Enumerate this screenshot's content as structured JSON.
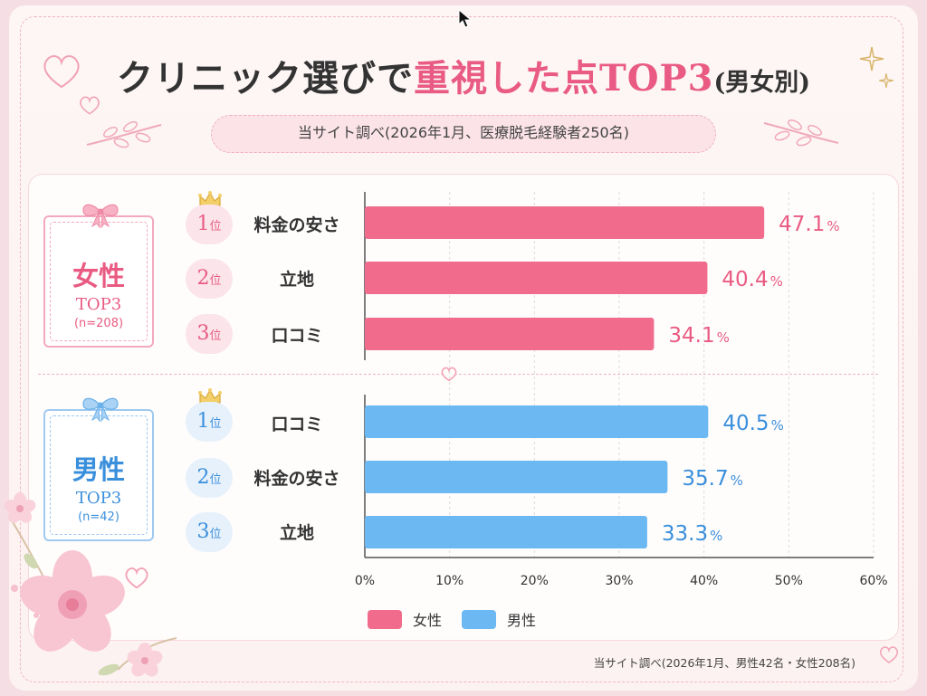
{
  "header": {
    "title_main": "クリニック選びで",
    "title_accent": "重視した点TOP3",
    "title_sub": "(男女別)",
    "subtitle": "当サイト調べ(2026年1月、医療脱毛経験者250名)"
  },
  "female_badge": {
    "name": "女性",
    "top": "TOP3",
    "n": "(n=208)"
  },
  "male_badge": {
    "name": "男性",
    "top": "TOP3",
    "n": "(n=42)"
  },
  "rank_unit": "位",
  "percent_suffix": "%",
  "legend": {
    "female": "女性",
    "male": "男性"
  },
  "footnote": "当サイト調べ(2026年1月、男性42名・女性208名)",
  "colors": {
    "female": "#f06b8c",
    "male": "#6cb8f3",
    "female_text": "#e95b82",
    "male_text": "#3a8fdc",
    "grid": "#dcdcdc"
  },
  "icons": [
    "crown-icon",
    "ribbon-icon",
    "heart-icon",
    "sparkle-icon",
    "flower-icon",
    "mouse-cursor-icon"
  ],
  "chart_data": {
    "type": "bar",
    "orientation": "horizontal",
    "xlim": [
      0,
      60
    ],
    "x_ticks": [
      "0%",
      "10%",
      "20%",
      "30%",
      "40%",
      "50%",
      "60%"
    ],
    "grid": true,
    "legend_position": "bottom",
    "groups": [
      {
        "name": "女性",
        "items": [
          {
            "rank": "1",
            "label": "料金の安さ",
            "value": 47.1,
            "value_text": "47.1"
          },
          {
            "rank": "2",
            "label": "立地",
            "value": 40.4,
            "value_text": "40.4"
          },
          {
            "rank": "3",
            "label": "口コミ",
            "value": 34.1,
            "value_text": "34.1"
          }
        ]
      },
      {
        "name": "男性",
        "items": [
          {
            "rank": "1",
            "label": "口コミ",
            "value": 40.5,
            "value_text": "40.5"
          },
          {
            "rank": "2",
            "label": "料金の安さ",
            "value": 35.7,
            "value_text": "35.7"
          },
          {
            "rank": "3",
            "label": "立地",
            "value": 33.3,
            "value_text": "33.3"
          }
        ]
      }
    ]
  }
}
